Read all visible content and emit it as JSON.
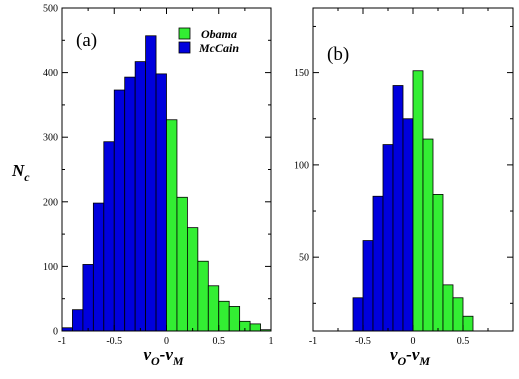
{
  "chart_data": [
    {
      "type": "bar",
      "panel_label": "(a)",
      "x_label_main": "v",
      "x_label_sub1": "O",
      "x_label_mid": "-v",
      "x_label_sub2": "M",
      "y_label_main": "N",
      "y_label_sub": "c",
      "xlim": [
        -1,
        1
      ],
      "ylim": [
        0,
        500
      ],
      "xticks": [
        "-1",
        "-0.5",
        "0",
        "0.5",
        "1"
      ],
      "xtick_values": [
        -1,
        -0.5,
        0,
        0.5,
        1
      ],
      "yticks": [
        "0",
        "100",
        "200",
        "300",
        "400",
        "500"
      ],
      "ytick_values": [
        0,
        100,
        200,
        300,
        400,
        500
      ],
      "bin_width": 0.1,
      "legend": {
        "position": "top-right",
        "entries": [
          {
            "name": "Obama",
            "color": "#33ee33"
          },
          {
            "name": "McCain",
            "color": "#0000dd"
          }
        ]
      },
      "series": [
        {
          "name": "McCain",
          "color": "#0000dd",
          "x": [
            -0.95,
            -0.85,
            -0.75,
            -0.65,
            -0.55,
            -0.45,
            -0.35,
            -0.25,
            -0.15,
            -0.05
          ],
          "values": [
            5,
            33,
            103,
            198,
            293,
            373,
            393,
            417,
            457,
            398
          ]
        },
        {
          "name": "Obama",
          "color": "#33ee33",
          "x": [
            0.05,
            0.15,
            0.25,
            0.35,
            0.45,
            0.55,
            0.65,
            0.75,
            0.85,
            0.95
          ],
          "values": [
            327,
            207,
            160,
            108,
            70,
            46,
            38,
            15,
            11,
            2
          ]
        }
      ]
    },
    {
      "type": "bar",
      "panel_label": "(b)",
      "x_label_main": "v",
      "x_label_sub1": "O",
      "x_label_mid": "-v",
      "x_label_sub2": "M",
      "xlim": [
        -1,
        1
      ],
      "ylim": [
        10,
        185
      ],
      "xticks": [
        "-1",
        "-0.5",
        "0",
        "0.5"
      ],
      "xtick_values": [
        -1,
        -0.5,
        0,
        0.5
      ],
      "yticks": [
        "50",
        "100",
        "150"
      ],
      "ytick_values": [
        50,
        100,
        150
      ],
      "bin_width": 0.1,
      "series": [
        {
          "name": "McCain",
          "color": "#0000dd",
          "x": [
            -0.55,
            -0.45,
            -0.35,
            -0.25,
            -0.15,
            -0.05
          ],
          "values": [
            28,
            59,
            83,
            111,
            143,
            125
          ]
        },
        {
          "name": "Obama",
          "color": "#33ee33",
          "x": [
            0.05,
            0.15,
            0.25,
            0.35,
            0.45,
            0.55
          ],
          "values": [
            151,
            114,
            84,
            35,
            28,
            18
          ]
        }
      ]
    }
  ]
}
